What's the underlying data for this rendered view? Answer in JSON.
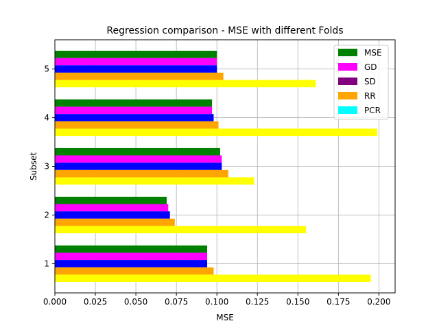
{
  "chart_data": {
    "type": "bar",
    "orientation": "horizontal",
    "title": "Regression comparison - MSE with different Folds",
    "xlabel": "MSE",
    "ylabel": "Subset",
    "xlim": [
      0.0,
      0.21
    ],
    "ylim": [
      0.4,
      5.6
    ],
    "xticks": [
      0.0,
      0.025,
      0.05,
      0.075,
      0.1,
      0.125,
      0.15,
      0.175,
      0.2
    ],
    "xtick_labels": [
      "0.000",
      "0.025",
      "0.050",
      "0.075",
      "0.100",
      "0.125",
      "0.150",
      "0.175",
      "0.200"
    ],
    "categories": [
      "1",
      "2",
      "3",
      "4",
      "5"
    ],
    "grid": true,
    "legend_position": "top-right",
    "series": [
      {
        "name": "MSE",
        "color": "#008000",
        "values": [
          0.094,
          0.069,
          0.102,
          0.097,
          0.1
        ]
      },
      {
        "name": "GD",
        "color": "#ff00ff",
        "values": [
          0.094,
          0.07,
          0.103,
          0.097,
          0.1
        ]
      },
      {
        "name": "SD",
        "color": "#800080",
        "values": [
          0.094,
          0.071,
          0.103,
          0.098,
          0.1
        ]
      },
      {
        "name": "RR",
        "color": "#ffa500",
        "values": [
          0.098,
          0.074,
          0.107,
          0.101,
          0.104
        ]
      },
      {
        "name": "PCR",
        "color": "#00ffff",
        "values": [
          0.195,
          0.155,
          0.123,
          0.199,
          0.161
        ]
      }
    ],
    "bar_fill_colors": [
      "#008000",
      "#ff00ff",
      "#0000ff",
      "#ffa500",
      "#ffff00"
    ]
  }
}
